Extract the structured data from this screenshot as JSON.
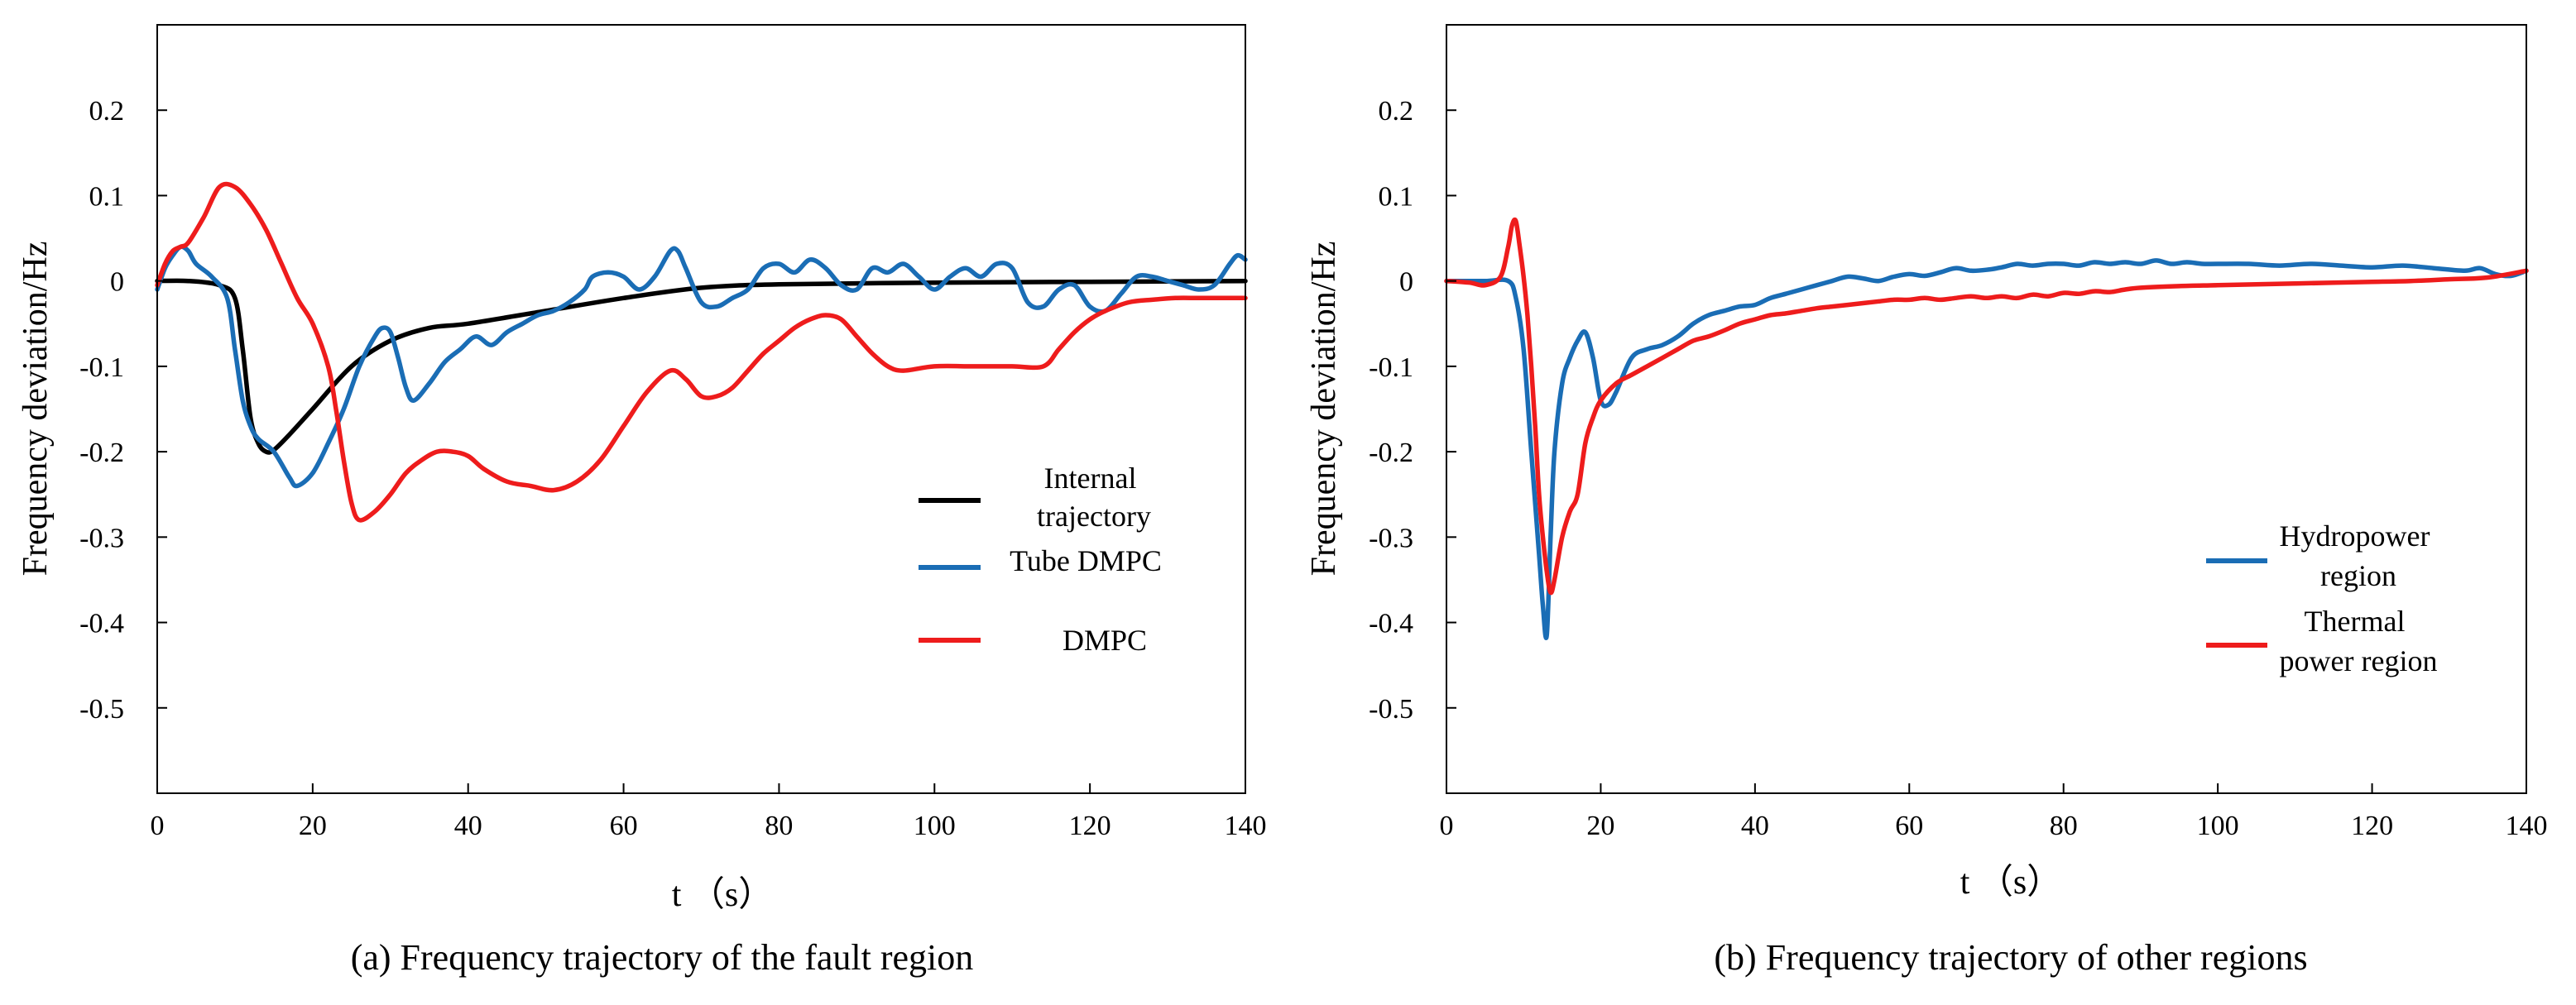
{
  "chart_data": [
    {
      "type": "line",
      "title": "",
      "caption": "(a) Frequency trajectory of the fault region",
      "xlabel": "t （s）",
      "ylabel": "Frequency deviation/Hz",
      "xlim": [
        0,
        140
      ],
      "ylim": [
        -0.6,
        0.3
      ],
      "xticks": [
        0,
        20,
        40,
        60,
        80,
        100,
        120,
        140
      ],
      "xtick_labels": [
        "0",
        "20",
        "40",
        "60",
        "80",
        "100",
        "120",
        "140"
      ],
      "yticks": [
        0.2,
        0.1,
        0,
        -0.1,
        -0.2,
        -0.3,
        -0.4,
        -0.5
      ],
      "ytick_labels": [
        "0.2",
        "0.1",
        "0",
        "-0.1",
        "-0.2",
        "-0.3",
        "-0.4",
        "-0.5"
      ],
      "legend_position": "lower-right",
      "series": [
        {
          "name": "Internal trajectory",
          "legend_lines": [
            "Internal",
            "trajectory"
          ],
          "color": "#000000",
          "x": [
            0,
            4,
            8,
            10,
            11,
            12,
            13,
            14,
            15,
            17,
            20,
            25,
            30,
            35,
            40,
            50,
            60,
            70,
            80,
            100,
            120,
            140
          ],
          "y": [
            0,
            0,
            -0.005,
            -0.02,
            -0.08,
            -0.16,
            -0.19,
            -0.2,
            -0.198,
            -0.18,
            -0.15,
            -0.1,
            -0.07,
            -0.055,
            -0.05,
            -0.035,
            -0.02,
            -0.008,
            -0.004,
            -0.002,
            -0.001,
            0
          ]
        },
        {
          "name": "Tube DMPC",
          "legend_lines": [
            "Tube DMPC"
          ],
          "color": "#1a6db5",
          "x": [
            0,
            1,
            2,
            3,
            4,
            5,
            7,
            9,
            10,
            11,
            12,
            13,
            15,
            17,
            18,
            20,
            22,
            24,
            26,
            28,
            29,
            30,
            31,
            32,
            33,
            35,
            37,
            39,
            41,
            43,
            45,
            47,
            49,
            51,
            53,
            55,
            56,
            58,
            60,
            62,
            64,
            66,
            67,
            68,
            70,
            72,
            74,
            76,
            78,
            80,
            82,
            84,
            86,
            88,
            90,
            92,
            94,
            96,
            98,
            100,
            102,
            104,
            106,
            108,
            110,
            112,
            114,
            116,
            118,
            120,
            122,
            124,
            126,
            128,
            130,
            132,
            134,
            136,
            138,
            139,
            140
          ],
          "y": [
            -0.01,
            0.015,
            0.03,
            0.04,
            0.035,
            0.02,
            0.005,
            -0.02,
            -0.08,
            -0.14,
            -0.17,
            -0.185,
            -0.2,
            -0.23,
            -0.24,
            -0.225,
            -0.19,
            -0.15,
            -0.1,
            -0.065,
            -0.055,
            -0.06,
            -0.09,
            -0.125,
            -0.14,
            -0.12,
            -0.095,
            -0.08,
            -0.065,
            -0.075,
            -0.06,
            -0.05,
            -0.04,
            -0.035,
            -0.025,
            -0.01,
            0.005,
            0.01,
            0.005,
            -0.01,
            0.005,
            0.035,
            0.035,
            0.015,
            -0.025,
            -0.03,
            -0.02,
            -0.01,
            0.015,
            0.02,
            0.01,
            0.025,
            0.015,
            -0.005,
            -0.01,
            0.015,
            0.01,
            0.02,
            0.005,
            -0.01,
            0.005,
            0.015,
            0.005,
            0.02,
            0.015,
            -0.025,
            -0.03,
            -0.01,
            -0.005,
            -0.03,
            -0.035,
            -0.015,
            0.005,
            0.005,
            0,
            -0.005,
            -0.01,
            -0.005,
            0.02,
            0.03,
            0.025
          ]
        },
        {
          "name": "DMPC",
          "legend_lines": [
            "DMPC"
          ],
          "color": "#ee1c1c",
          "x": [
            0,
            1,
            2,
            3,
            4,
            6,
            8,
            10,
            12,
            14,
            16,
            18,
            20,
            22,
            23,
            24,
            25,
            26,
            28,
            30,
            32,
            34,
            36,
            38,
            40,
            42,
            45,
            48,
            51,
            54,
            57,
            60,
            63,
            66,
            68,
            70,
            72,
            74,
            76,
            78,
            80,
            82,
            84,
            86,
            88,
            90,
            92,
            94,
            96,
            100,
            105,
            110,
            114,
            116,
            118,
            120,
            122,
            125,
            128,
            131,
            134,
            137,
            140
          ],
          "y": [
            -0.005,
            0.02,
            0.035,
            0.04,
            0.045,
            0.075,
            0.11,
            0.11,
            0.09,
            0.06,
            0.02,
            -0.02,
            -0.05,
            -0.1,
            -0.15,
            -0.21,
            -0.26,
            -0.28,
            -0.27,
            -0.25,
            -0.225,
            -0.21,
            -0.2,
            -0.2,
            -0.205,
            -0.22,
            -0.235,
            -0.24,
            -0.245,
            -0.235,
            -0.21,
            -0.17,
            -0.13,
            -0.105,
            -0.115,
            -0.135,
            -0.135,
            -0.125,
            -0.105,
            -0.085,
            -0.07,
            -0.055,
            -0.045,
            -0.04,
            -0.045,
            -0.065,
            -0.085,
            -0.1,
            -0.105,
            -0.1,
            -0.1,
            -0.1,
            -0.1,
            -0.08,
            -0.06,
            -0.045,
            -0.035,
            -0.025,
            -0.022,
            -0.02,
            -0.02,
            -0.02,
            -0.02
          ]
        }
      ]
    },
    {
      "type": "line",
      "title": "",
      "caption": "(b) Frequency trajectory of other regions",
      "xlabel": "t （s）",
      "ylabel": "Frequency deviation/Hz",
      "xlim": [
        0,
        140
      ],
      "ylim": [
        -0.6,
        0.3
      ],
      "xticks": [
        0,
        20,
        40,
        60,
        80,
        100,
        120,
        140
      ],
      "xtick_labels": [
        "0",
        "20",
        "40",
        "60",
        "80",
        "100",
        "120",
        "140"
      ],
      "yticks": [
        0.2,
        0.1,
        0,
        -0.1,
        -0.2,
        -0.3,
        -0.4,
        -0.5
      ],
      "ytick_labels": [
        "0.2",
        "0.1",
        "0",
        "-0.1",
        "-0.2",
        "-0.3",
        "-0.4",
        "-0.5"
      ],
      "legend_position": "lower-right",
      "series": [
        {
          "name": "Hydropower region",
          "legend_lines": [
            "Hydropower",
            "region"
          ],
          "color": "#1a6db5",
          "x": [
            0,
            5,
            8,
            9,
            10,
            11,
            12,
            12.5,
            13,
            13.5,
            14,
            15,
            16,
            17,
            18,
            19,
            20,
            21,
            22,
            24,
            26,
            28,
            30,
            32,
            34,
            36,
            38,
            40,
            42,
            44,
            46,
            48,
            50,
            52,
            54,
            56,
            58,
            60,
            62,
            64,
            66,
            68,
            70,
            72,
            74,
            76,
            78,
            80,
            82,
            84,
            86,
            88,
            90,
            92,
            94,
            96,
            98,
            100,
            104,
            108,
            112,
            116,
            120,
            124,
            128,
            132,
            134,
            136,
            138,
            140
          ],
          "y": [
            0,
            0,
            0,
            -0.02,
            -0.08,
            -0.2,
            -0.32,
            -0.38,
            -0.415,
            -0.3,
            -0.2,
            -0.12,
            -0.09,
            -0.07,
            -0.06,
            -0.09,
            -0.14,
            -0.145,
            -0.13,
            -0.09,
            -0.08,
            -0.075,
            -0.065,
            -0.05,
            -0.04,
            -0.035,
            -0.03,
            -0.028,
            -0.02,
            -0.015,
            -0.01,
            -0.005,
            0,
            0.005,
            0.003,
            0,
            0.005,
            0.008,
            0.006,
            0.01,
            0.015,
            0.012,
            0.013,
            0.016,
            0.02,
            0.018,
            0.02,
            0.02,
            0.018,
            0.022,
            0.02,
            0.022,
            0.02,
            0.024,
            0.02,
            0.022,
            0.02,
            0.02,
            0.02,
            0.018,
            0.02,
            0.018,
            0.016,
            0.018,
            0.015,
            0.012,
            0.015,
            0.008,
            0.006,
            0.012
          ]
        },
        {
          "name": "Thermal power region",
          "legend_lines": [
            "Thermal",
            "power region"
          ],
          "color": "#ee1c1c",
          "x": [
            0,
            3,
            5,
            7,
            8,
            8.5,
            9,
            9.5,
            10,
            10.5,
            11,
            11.5,
            12,
            12.5,
            13,
            13.5,
            14,
            15,
            16,
            17,
            18,
            19,
            20,
            22,
            24,
            26,
            28,
            30,
            32,
            34,
            36,
            38,
            40,
            42,
            44,
            46,
            48,
            50,
            52,
            54,
            56,
            58,
            60,
            62,
            64,
            66,
            68,
            70,
            72,
            74,
            76,
            78,
            80,
            82,
            84,
            86,
            88,
            90,
            95,
            100,
            105,
            110,
            115,
            120,
            125,
            130,
            135,
            140
          ],
          "y": [
            0,
            -0.002,
            -0.005,
            0.005,
            0.04,
            0.065,
            0.07,
            0.04,
            0.005,
            -0.04,
            -0.1,
            -0.17,
            -0.25,
            -0.3,
            -0.34,
            -0.365,
            -0.35,
            -0.3,
            -0.27,
            -0.25,
            -0.19,
            -0.16,
            -0.14,
            -0.12,
            -0.11,
            -0.1,
            -0.09,
            -0.08,
            -0.07,
            -0.065,
            -0.058,
            -0.05,
            -0.045,
            -0.04,
            -0.038,
            -0.035,
            -0.032,
            -0.03,
            -0.028,
            -0.026,
            -0.024,
            -0.022,
            -0.022,
            -0.02,
            -0.022,
            -0.02,
            -0.018,
            -0.02,
            -0.018,
            -0.02,
            -0.016,
            -0.018,
            -0.014,
            -0.015,
            -0.012,
            -0.013,
            -0.01,
            -0.008,
            -0.006,
            -0.005,
            -0.004,
            -0.003,
            -0.002,
            -0.001,
            0,
            0.002,
            0.004,
            0.012
          ]
        }
      ]
    }
  ]
}
